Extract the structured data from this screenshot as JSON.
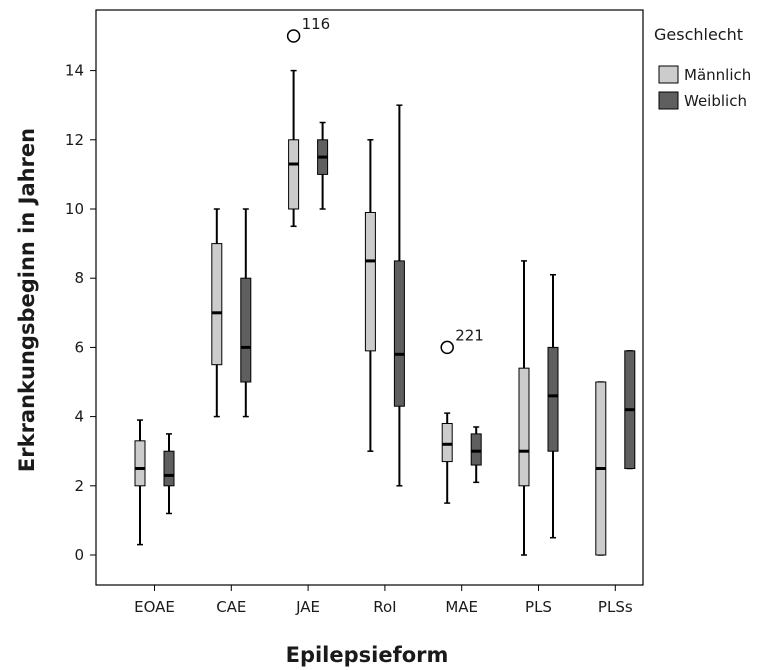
{
  "chart_data": {
    "type": "boxplot",
    "xlabel": "Epilepsieform",
    "ylabel": "Erkrankungsbeginn in Jahren",
    "ylim": [
      -0.8,
      15.8
    ],
    "yticks": [
      0,
      2,
      4,
      6,
      8,
      10,
      12,
      14
    ],
    "grid": false,
    "legend_position": "top-right",
    "legend_title": "Geschlecht",
    "categories": [
      "EOAE",
      "CAE",
      "JAE",
      "RoI",
      "MAE",
      "PLS",
      "PLSs"
    ],
    "series": [
      {
        "name": "Männlich",
        "color": "#cccccc",
        "boxes": [
          {
            "min": 0.3,
            "q1": 2.0,
            "median": 2.5,
            "q3": 3.3,
            "max": 3.9
          },
          {
            "min": 4.0,
            "q1": 5.5,
            "median": 7.0,
            "q3": 9.0,
            "max": 10.0
          },
          {
            "min": 9.5,
            "q1": 10.0,
            "median": 11.3,
            "q3": 12.0,
            "max": 14.0
          },
          {
            "min": 3.0,
            "q1": 5.9,
            "median": 8.5,
            "q3": 9.9,
            "max": 12.0
          },
          {
            "min": 1.5,
            "q1": 2.7,
            "median": 3.2,
            "q3": 3.8,
            "max": 4.1
          },
          {
            "min": 0.0,
            "q1": 2.0,
            "median": 3.0,
            "q3": 5.4,
            "max": 8.5
          },
          {
            "min": 0.0,
            "q1": 0.0,
            "median": 2.5,
            "q3": 5.0,
            "max": 5.0
          }
        ]
      },
      {
        "name": "Weiblich",
        "color": "#5f5f5f",
        "boxes": [
          {
            "min": 1.2,
            "q1": 2.0,
            "median": 2.3,
            "q3": 3.0,
            "max": 3.5
          },
          {
            "min": 4.0,
            "q1": 5.0,
            "median": 6.0,
            "q3": 8.0,
            "max": 10.0
          },
          {
            "min": 10.0,
            "q1": 11.0,
            "median": 11.5,
            "q3": 12.0,
            "max": 12.5
          },
          {
            "min": 2.0,
            "q1": 4.3,
            "median": 5.8,
            "q3": 8.5,
            "max": 13.0
          },
          {
            "min": 2.1,
            "q1": 2.6,
            "median": 3.0,
            "q3": 3.5,
            "max": 3.7
          },
          {
            "min": 0.5,
            "q1": 3.0,
            "median": 4.6,
            "q3": 6.0,
            "max": 8.1
          },
          {
            "min": 2.5,
            "q1": 2.5,
            "median": 4.2,
            "q3": 5.9,
            "max": 5.9
          }
        ]
      }
    ],
    "outliers": [
      {
        "category": "JAE",
        "series": "Männlich",
        "value": 15.0,
        "label": "116"
      },
      {
        "category": "MAE",
        "series": "Männlich",
        "value": 6.0,
        "label": "221"
      }
    ]
  }
}
